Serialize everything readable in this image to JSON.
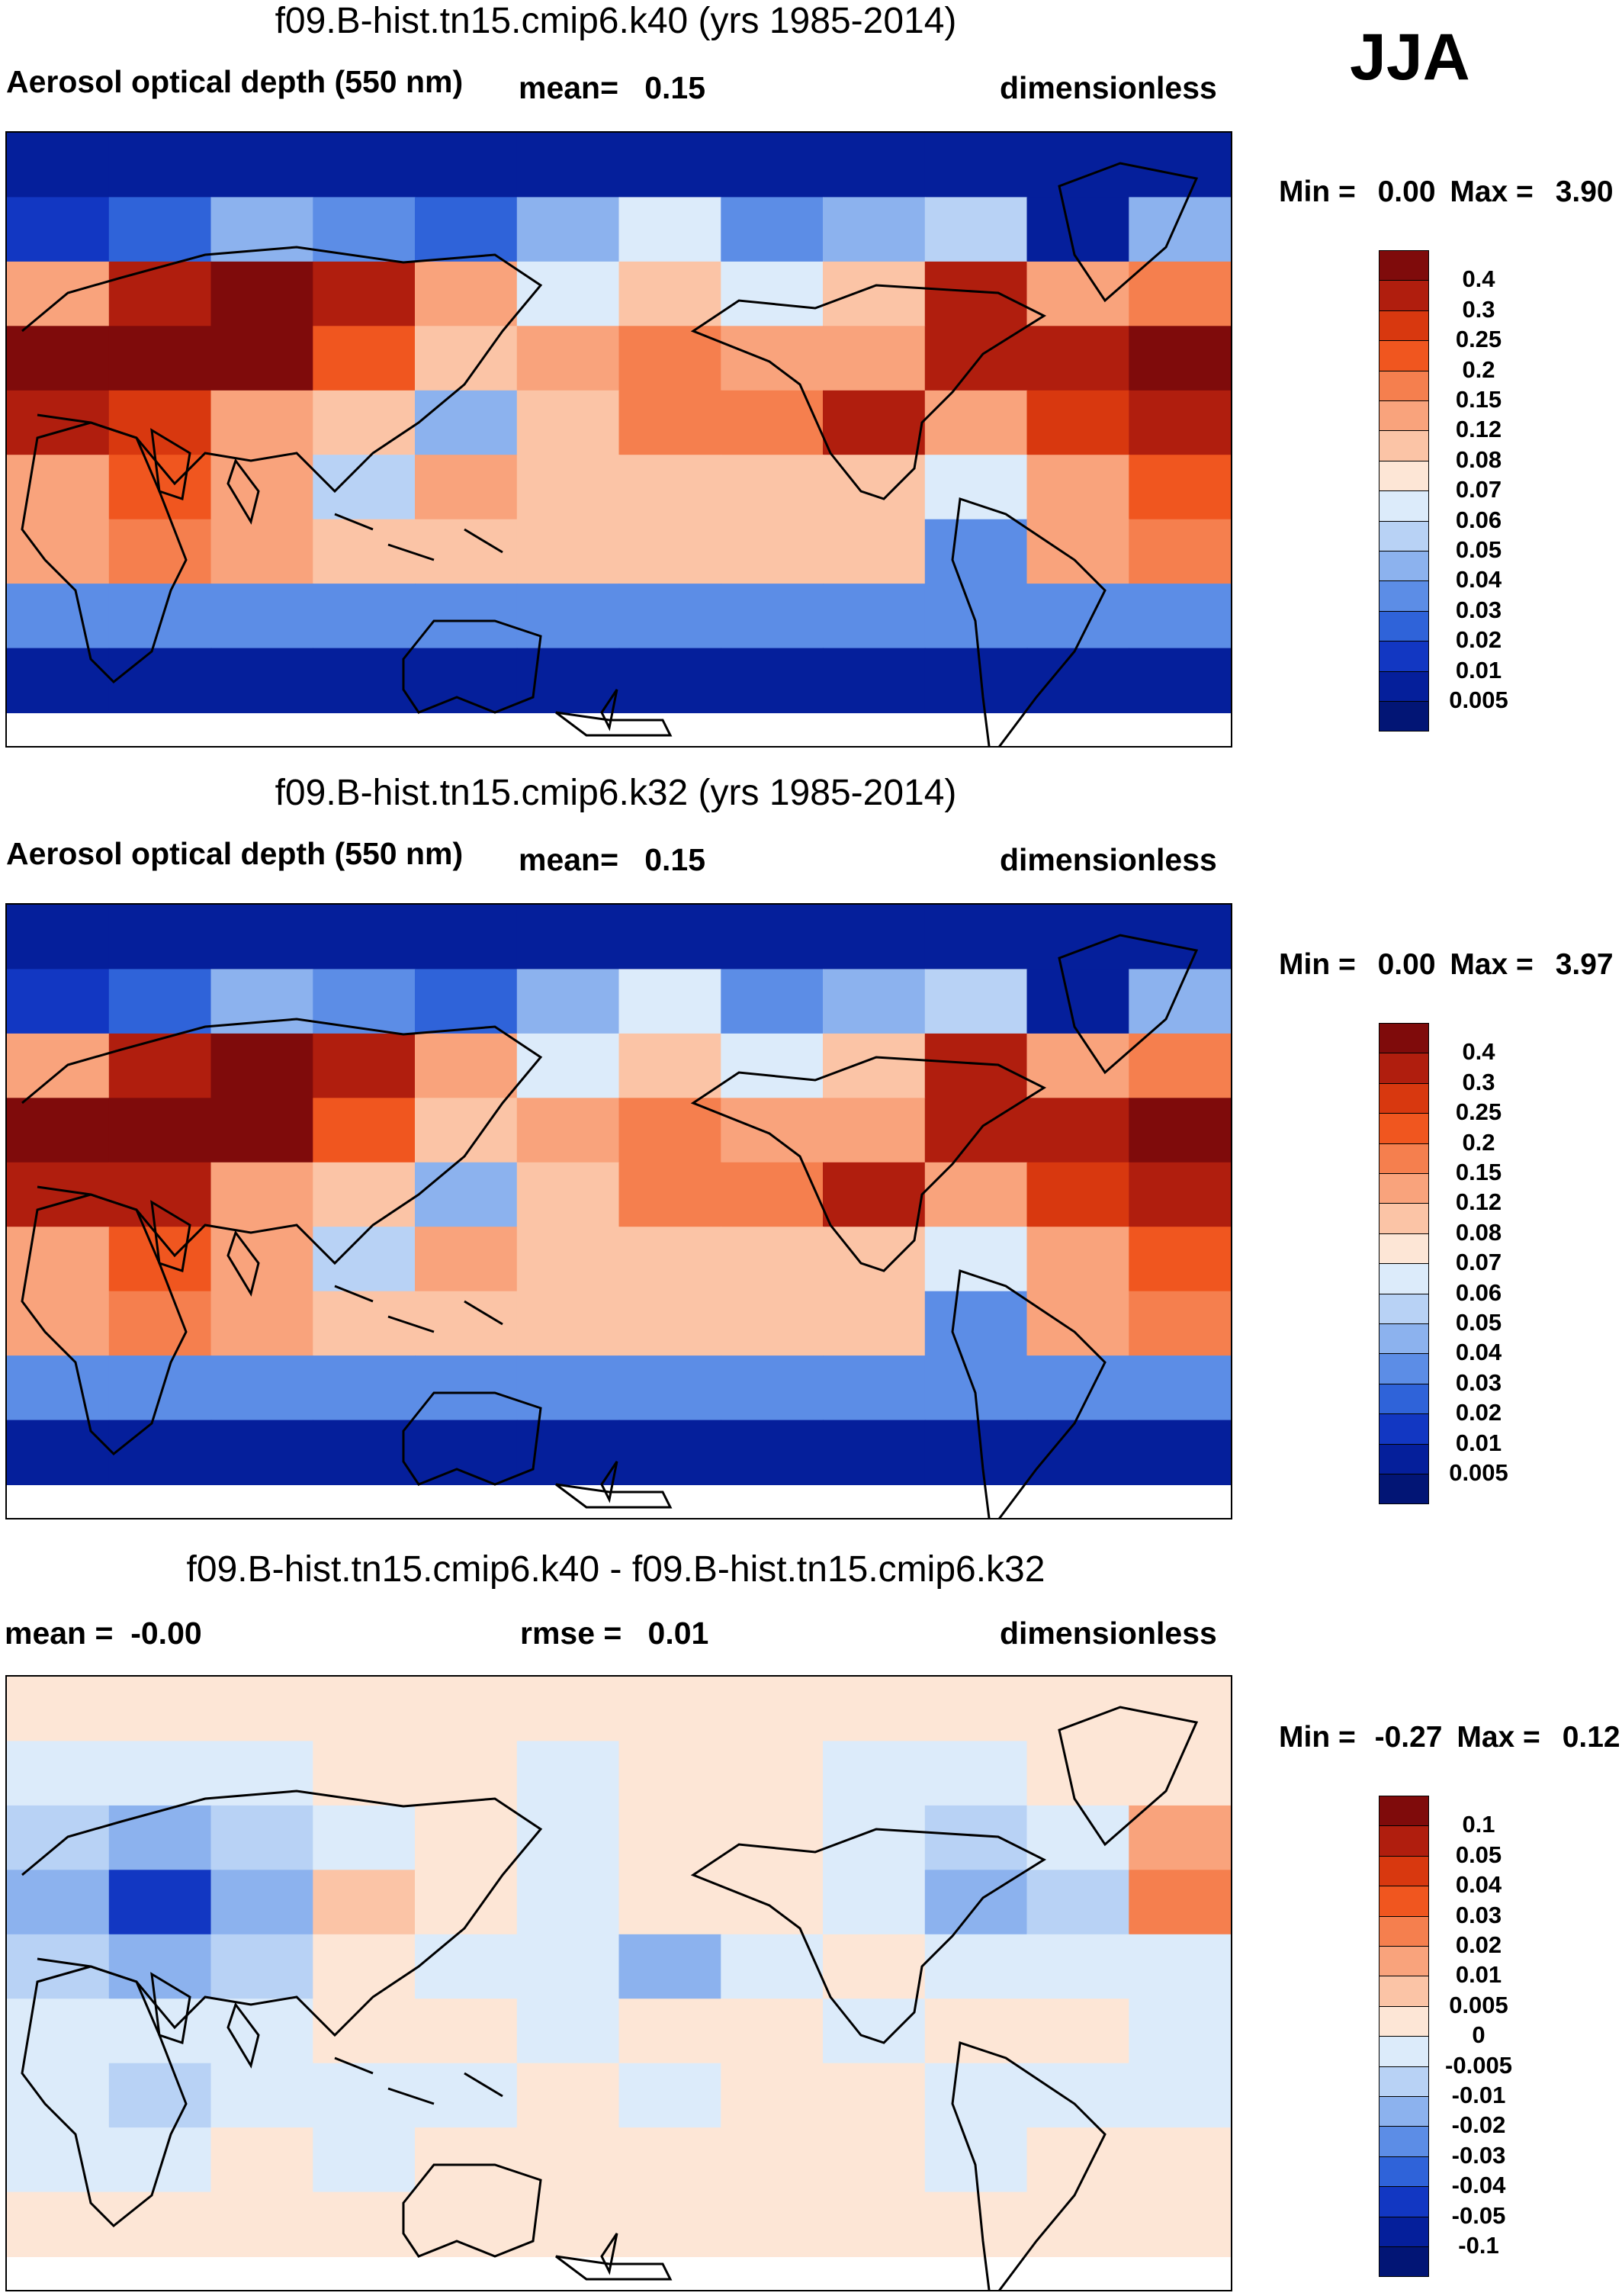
{
  "season": "JJA",
  "panels": [
    {
      "title": "f09.B-hist.tn15.cmip6.k40 (yrs 1985-2014)",
      "left_label": "Aerosol optical depth (550 nm)",
      "mid_label": "mean=   0.15",
      "right_label": "dimensionless",
      "min_label": "Min =",
      "min_value": "0.00",
      "max_label": "Max =",
      "max_value": "3.90"
    },
    {
      "title": "f09.B-hist.tn15.cmip6.k32 (yrs 1985-2014)",
      "left_label": "Aerosol optical depth (550 nm)",
      "mid_label": "mean=   0.15",
      "right_label": "dimensionless",
      "min_label": "Min =",
      "min_value": "0.00",
      "max_label": "Max =",
      "max_value": "3.97"
    },
    {
      "title": "f09.B-hist.tn15.cmip6.k40 - f09.B-hist.tn15.cmip6.k32",
      "left_label": "mean =  -0.00",
      "mid_label": "rmse =   0.01",
      "right_label": "dimensionless",
      "min_label": "Min =",
      "min_value": "-0.27",
      "max_label": "Max =",
      "max_value": "0.12"
    }
  ],
  "colorbars": {
    "aod": {
      "labels": [
        "0.4",
        "0.3",
        "0.25",
        "0.2",
        "0.15",
        "0.12",
        "0.08",
        "0.07",
        "0.06",
        "0.05",
        "0.04",
        "0.03",
        "0.02",
        "0.01",
        "0.005"
      ],
      "colors": [
        "#7f0b0b",
        "#b01e0e",
        "#d8380f",
        "#f0561f",
        "#f57f4e",
        "#f9a37c",
        "#fbc4a6",
        "#fde6d6",
        "#dcebfa",
        "#b8d2f5",
        "#8cb2ee",
        "#5c8de6",
        "#2f63d9",
        "#1237c2",
        "#051f9b",
        "#021575"
      ]
    },
    "diff": {
      "labels": [
        "0.1",
        "0.05",
        "0.04",
        "0.03",
        "0.02",
        "0.01",
        "0.005",
        "0",
        "-0.005",
        "-0.01",
        "-0.02",
        "-0.03",
        "-0.04",
        "-0.05",
        "-0.1"
      ],
      "colors": [
        "#7f0b0b",
        "#b01e0e",
        "#d8380f",
        "#f0561f",
        "#f57f4e",
        "#f9a37c",
        "#fbc4a6",
        "#fde6d6",
        "#dcebfa",
        "#b8d2f5",
        "#8cb2ee",
        "#5c8de6",
        "#2f63d9",
        "#1237c2",
        "#051f9b",
        "#021575"
      ]
    }
  },
  "chart_data": [
    {
      "type": "heatmap",
      "title": "f09.B-hist.tn15.cmip6.k40 (yrs 1985-2014)",
      "variable": "Aerosol optical depth (550 nm)",
      "units": "dimensionless",
      "season": "JJA",
      "mean": 0.15,
      "min": 0.0,
      "max": 3.9,
      "levels": [
        0.005,
        0.01,
        0.02,
        0.03,
        0.04,
        0.05,
        0.06,
        0.07,
        0.08,
        0.12,
        0.15,
        0.2,
        0.25,
        0.3,
        0.4
      ],
      "field": [
        [
          0.005,
          0.005,
          0.005,
          0.005,
          0.005,
          0.005,
          0.005,
          0.005,
          0.005,
          0.005,
          0.005,
          0.005
        ],
        [
          0.01,
          0.02,
          0.04,
          0.03,
          0.02,
          0.04,
          0.06,
          0.03,
          0.04,
          0.05,
          0.008,
          0.04
        ],
        [
          0.12,
          0.3,
          0.4,
          0.35,
          0.12,
          0.06,
          0.08,
          0.06,
          0.1,
          0.35,
          0.12,
          0.15
        ],
        [
          0.4,
          0.4,
          0.45,
          0.2,
          0.1,
          0.12,
          0.15,
          0.12,
          0.12,
          0.3,
          0.3,
          0.45
        ],
        [
          0.3,
          0.25,
          0.12,
          0.08,
          0.04,
          0.1,
          0.15,
          0.15,
          0.3,
          0.12,
          0.25,
          0.3
        ],
        [
          0.12,
          0.2,
          0.12,
          0.05,
          0.12,
          0.1,
          0.1,
          0.1,
          0.1,
          0.06,
          0.12,
          0.2
        ],
        [
          0.12,
          0.15,
          0.12,
          0.1,
          0.1,
          0.1,
          0.1,
          0.1,
          0.1,
          0.03,
          0.12,
          0.15
        ],
        [
          0.03,
          0.03,
          0.03,
          0.03,
          0.03,
          0.03,
          0.03,
          0.03,
          0.03,
          0.03,
          0.03,
          0.03
        ],
        [
          0.005,
          0.005,
          0.005,
          0.005,
          0.005,
          0.005,
          0.005,
          0.005,
          0.005,
          0.005,
          0.005,
          0.005
        ]
      ]
    },
    {
      "type": "heatmap",
      "title": "f09.B-hist.tn15.cmip6.k32 (yrs 1985-2014)",
      "variable": "Aerosol optical depth (550 nm)",
      "units": "dimensionless",
      "season": "JJA",
      "mean": 0.15,
      "min": 0.0,
      "max": 3.97,
      "levels": [
        0.005,
        0.01,
        0.02,
        0.03,
        0.04,
        0.05,
        0.06,
        0.07,
        0.08,
        0.12,
        0.15,
        0.2,
        0.25,
        0.3,
        0.4
      ],
      "field": [
        [
          0.005,
          0.005,
          0.005,
          0.005,
          0.005,
          0.005,
          0.005,
          0.005,
          0.005,
          0.005,
          0.005,
          0.005
        ],
        [
          0.01,
          0.02,
          0.04,
          0.03,
          0.02,
          0.04,
          0.06,
          0.03,
          0.04,
          0.05,
          0.008,
          0.04
        ],
        [
          0.12,
          0.3,
          0.4,
          0.35,
          0.12,
          0.06,
          0.08,
          0.06,
          0.1,
          0.35,
          0.12,
          0.15
        ],
        [
          0.4,
          0.45,
          0.45,
          0.2,
          0.1,
          0.12,
          0.15,
          0.12,
          0.12,
          0.3,
          0.3,
          0.45
        ],
        [
          0.3,
          0.3,
          0.12,
          0.08,
          0.04,
          0.1,
          0.15,
          0.15,
          0.3,
          0.12,
          0.25,
          0.3
        ],
        [
          0.12,
          0.2,
          0.12,
          0.05,
          0.12,
          0.1,
          0.1,
          0.1,
          0.1,
          0.06,
          0.12,
          0.2
        ],
        [
          0.12,
          0.15,
          0.12,
          0.1,
          0.1,
          0.1,
          0.1,
          0.1,
          0.1,
          0.03,
          0.12,
          0.15
        ],
        [
          0.03,
          0.03,
          0.03,
          0.03,
          0.03,
          0.03,
          0.03,
          0.03,
          0.03,
          0.03,
          0.03,
          0.03
        ],
        [
          0.005,
          0.005,
          0.005,
          0.005,
          0.005,
          0.005,
          0.005,
          0.005,
          0.005,
          0.005,
          0.005,
          0.005
        ]
      ]
    },
    {
      "type": "heatmap",
      "title": "f09.B-hist.tn15.cmip6.k40 - f09.B-hist.tn15.cmip6.k32",
      "units": "dimensionless",
      "season": "JJA",
      "mean": -0.0,
      "rmse": 0.01,
      "min": -0.27,
      "max": 0.12,
      "levels": [
        -0.1,
        -0.05,
        -0.04,
        -0.03,
        -0.02,
        -0.01,
        -0.005,
        0,
        0.005,
        0.01,
        0.02,
        0.03,
        0.04,
        0.05,
        0.1
      ],
      "field": [
        [
          0.003,
          0.003,
          0.003,
          0.003,
          0.003,
          0.003,
          0.003,
          0.003,
          0.003,
          0.003,
          0.003,
          0.003
        ],
        [
          -0.003,
          -0.005,
          -0.004,
          0.002,
          0.003,
          -0.002,
          0.003,
          0.003,
          -0.003,
          -0.004,
          0.003,
          0.004
        ],
        [
          -0.01,
          -0.02,
          -0.01,
          -0.004,
          0.004,
          -0.003,
          0.004,
          0.004,
          -0.003,
          -0.01,
          -0.004,
          0.01
        ],
        [
          -0.02,
          -0.05,
          -0.02,
          0.008,
          0.004,
          -0.003,
          0.004,
          0.003,
          -0.004,
          -0.02,
          -0.01,
          0.02
        ],
        [
          -0.01,
          -0.02,
          -0.01,
          0.004,
          -0.004,
          -0.004,
          -0.02,
          -0.003,
          0.003,
          -0.004,
          -0.003,
          -0.003
        ],
        [
          -0.004,
          -0.004,
          -0.005,
          0.003,
          0.004,
          -0.003,
          0.003,
          0.003,
          -0.003,
          0.003,
          0.004,
          -0.003
        ],
        [
          -0.004,
          -0.006,
          -0.004,
          -0.004,
          -0.004,
          0.003,
          -0.003,
          0.003,
          0.003,
          -0.003,
          -0.003,
          -0.004
        ],
        [
          -0.003,
          -0.003,
          0.003,
          -0.003,
          0.003,
          0.003,
          0.003,
          0.003,
          0.003,
          -0.003,
          0.003,
          0.003
        ],
        [
          0.003,
          0.003,
          0.003,
          0.003,
          0.003,
          0.003,
          0.003,
          0.003,
          0.003,
          0.003,
          0.003,
          0.003
        ]
      ]
    }
  ]
}
